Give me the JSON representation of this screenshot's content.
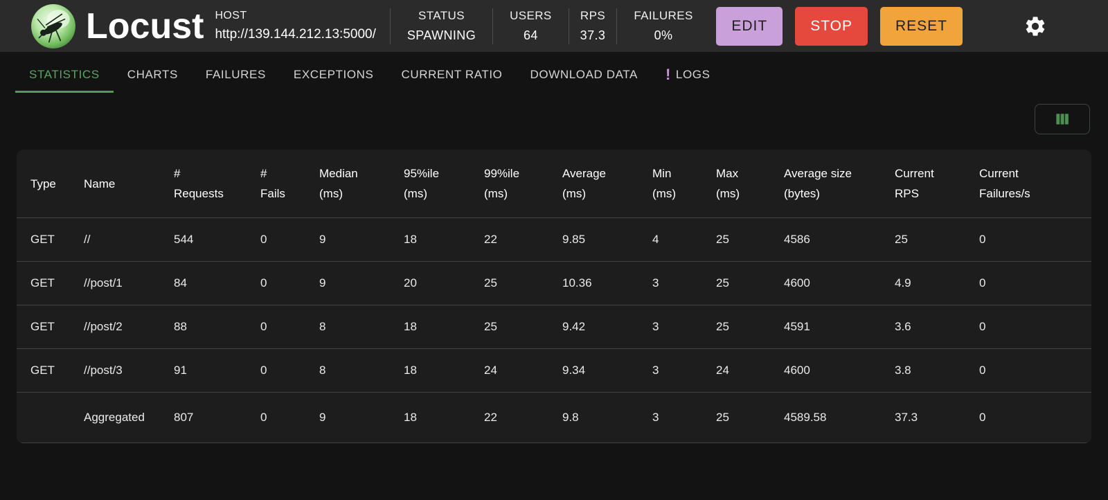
{
  "header": {
    "app_title": "Locust",
    "host": {
      "label": "HOST",
      "value": "http://139.144.212.13:5000/"
    },
    "stats": [
      {
        "label": "STATUS",
        "value": "SPAWNING"
      },
      {
        "label": "USERS",
        "value": "64"
      },
      {
        "label": "RPS",
        "value": "37.3"
      },
      {
        "label": "FAILURES",
        "value": "0%"
      }
    ],
    "buttons": {
      "edit": "EDIT",
      "stop": "STOP",
      "reset": "RESET"
    },
    "icons": {
      "settings": "gear-icon",
      "logo": "locust-logo"
    },
    "colors": {
      "edit_bg": "#c9a0d9",
      "stop_bg": "#e5483c",
      "reset_bg": "#f2a43c",
      "accent_green": "#4f9e52",
      "logs_badge": "#ce93d8",
      "header_bg": "#2b2b2b"
    }
  },
  "tabs": [
    {
      "label": "STATISTICS",
      "active": true
    },
    {
      "label": "CHARTS",
      "active": false
    },
    {
      "label": "FAILURES",
      "active": false
    },
    {
      "label": "EXCEPTIONS",
      "active": false
    },
    {
      "label": "CURRENT RATIO",
      "active": false
    },
    {
      "label": "DOWNLOAD DATA",
      "active": false
    },
    {
      "label": "LOGS",
      "active": false,
      "badge": "!"
    }
  ],
  "toolbar": {
    "column_selector_icon": "view-columns-icon"
  },
  "table": {
    "columns": [
      {
        "line1": "Type",
        "line2": ""
      },
      {
        "line1": "Name",
        "line2": ""
      },
      {
        "line1": "#",
        "line2": "Requests"
      },
      {
        "line1": "#",
        "line2": "Fails"
      },
      {
        "line1": "Median",
        "line2": "(ms)"
      },
      {
        "line1": "95%ile",
        "line2": "(ms)"
      },
      {
        "line1": "99%ile",
        "line2": "(ms)"
      },
      {
        "line1": "Average",
        "line2": "(ms)"
      },
      {
        "line1": "Min",
        "line2": "(ms)"
      },
      {
        "line1": "Max",
        "line2": "(ms)"
      },
      {
        "line1": "Average size",
        "line2": "(bytes)"
      },
      {
        "line1": "Current",
        "line2": "RPS"
      },
      {
        "line1": "Current",
        "line2": "Failures/s"
      }
    ],
    "rows": [
      [
        "GET",
        "//",
        "544",
        "0",
        "9",
        "18",
        "22",
        "9.85",
        "4",
        "25",
        "4586",
        "25",
        "0"
      ],
      [
        "GET",
        "//post/1",
        "84",
        "0",
        "9",
        "20",
        "25",
        "10.36",
        "3",
        "25",
        "4600",
        "4.9",
        "0"
      ],
      [
        "GET",
        "//post/2",
        "88",
        "0",
        "8",
        "18",
        "25",
        "9.42",
        "3",
        "25",
        "4591",
        "3.6",
        "0"
      ],
      [
        "GET",
        "//post/3",
        "91",
        "0",
        "8",
        "18",
        "24",
        "9.34",
        "3",
        "24",
        "4600",
        "3.8",
        "0"
      ],
      [
        "",
        "Aggregated",
        "807",
        "0",
        "9",
        "18",
        "22",
        "9.8",
        "3",
        "25",
        "4589.58",
        "37.3",
        "0"
      ]
    ]
  }
}
